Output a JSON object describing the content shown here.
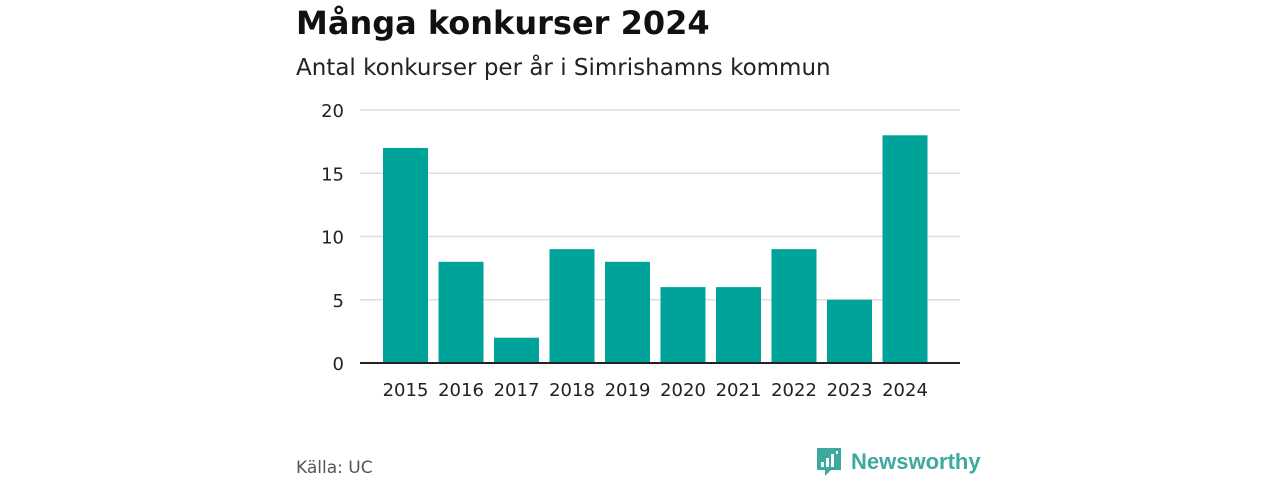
{
  "title": "Många konkurser 2024",
  "subtitle": "Antal konkurser per år i Simrishamns kommun",
  "source": "Källa: UC",
  "brand": {
    "name": "Newsworthy",
    "color": "#3ea99f",
    "icon": "bar-chart-bubble-icon"
  },
  "colors": {
    "bar": "#00a39a",
    "grid": "#dddddd",
    "axis": "#222222"
  },
  "chart_data": {
    "type": "bar",
    "categories": [
      "2015",
      "2016",
      "2017",
      "2018",
      "2019",
      "2020",
      "2021",
      "2022",
      "2023",
      "2024"
    ],
    "values": [
      17,
      8,
      2,
      9,
      8,
      6,
      6,
      9,
      5,
      18
    ],
    "title": "Många konkurser 2024",
    "subtitle": "Antal konkurser per år i Simrishamns kommun",
    "xlabel": "",
    "ylabel": "",
    "ylim": [
      0,
      20
    ],
    "yticks": [
      0,
      5,
      10,
      15,
      20
    ],
    "grid": true,
    "legend": "none"
  }
}
